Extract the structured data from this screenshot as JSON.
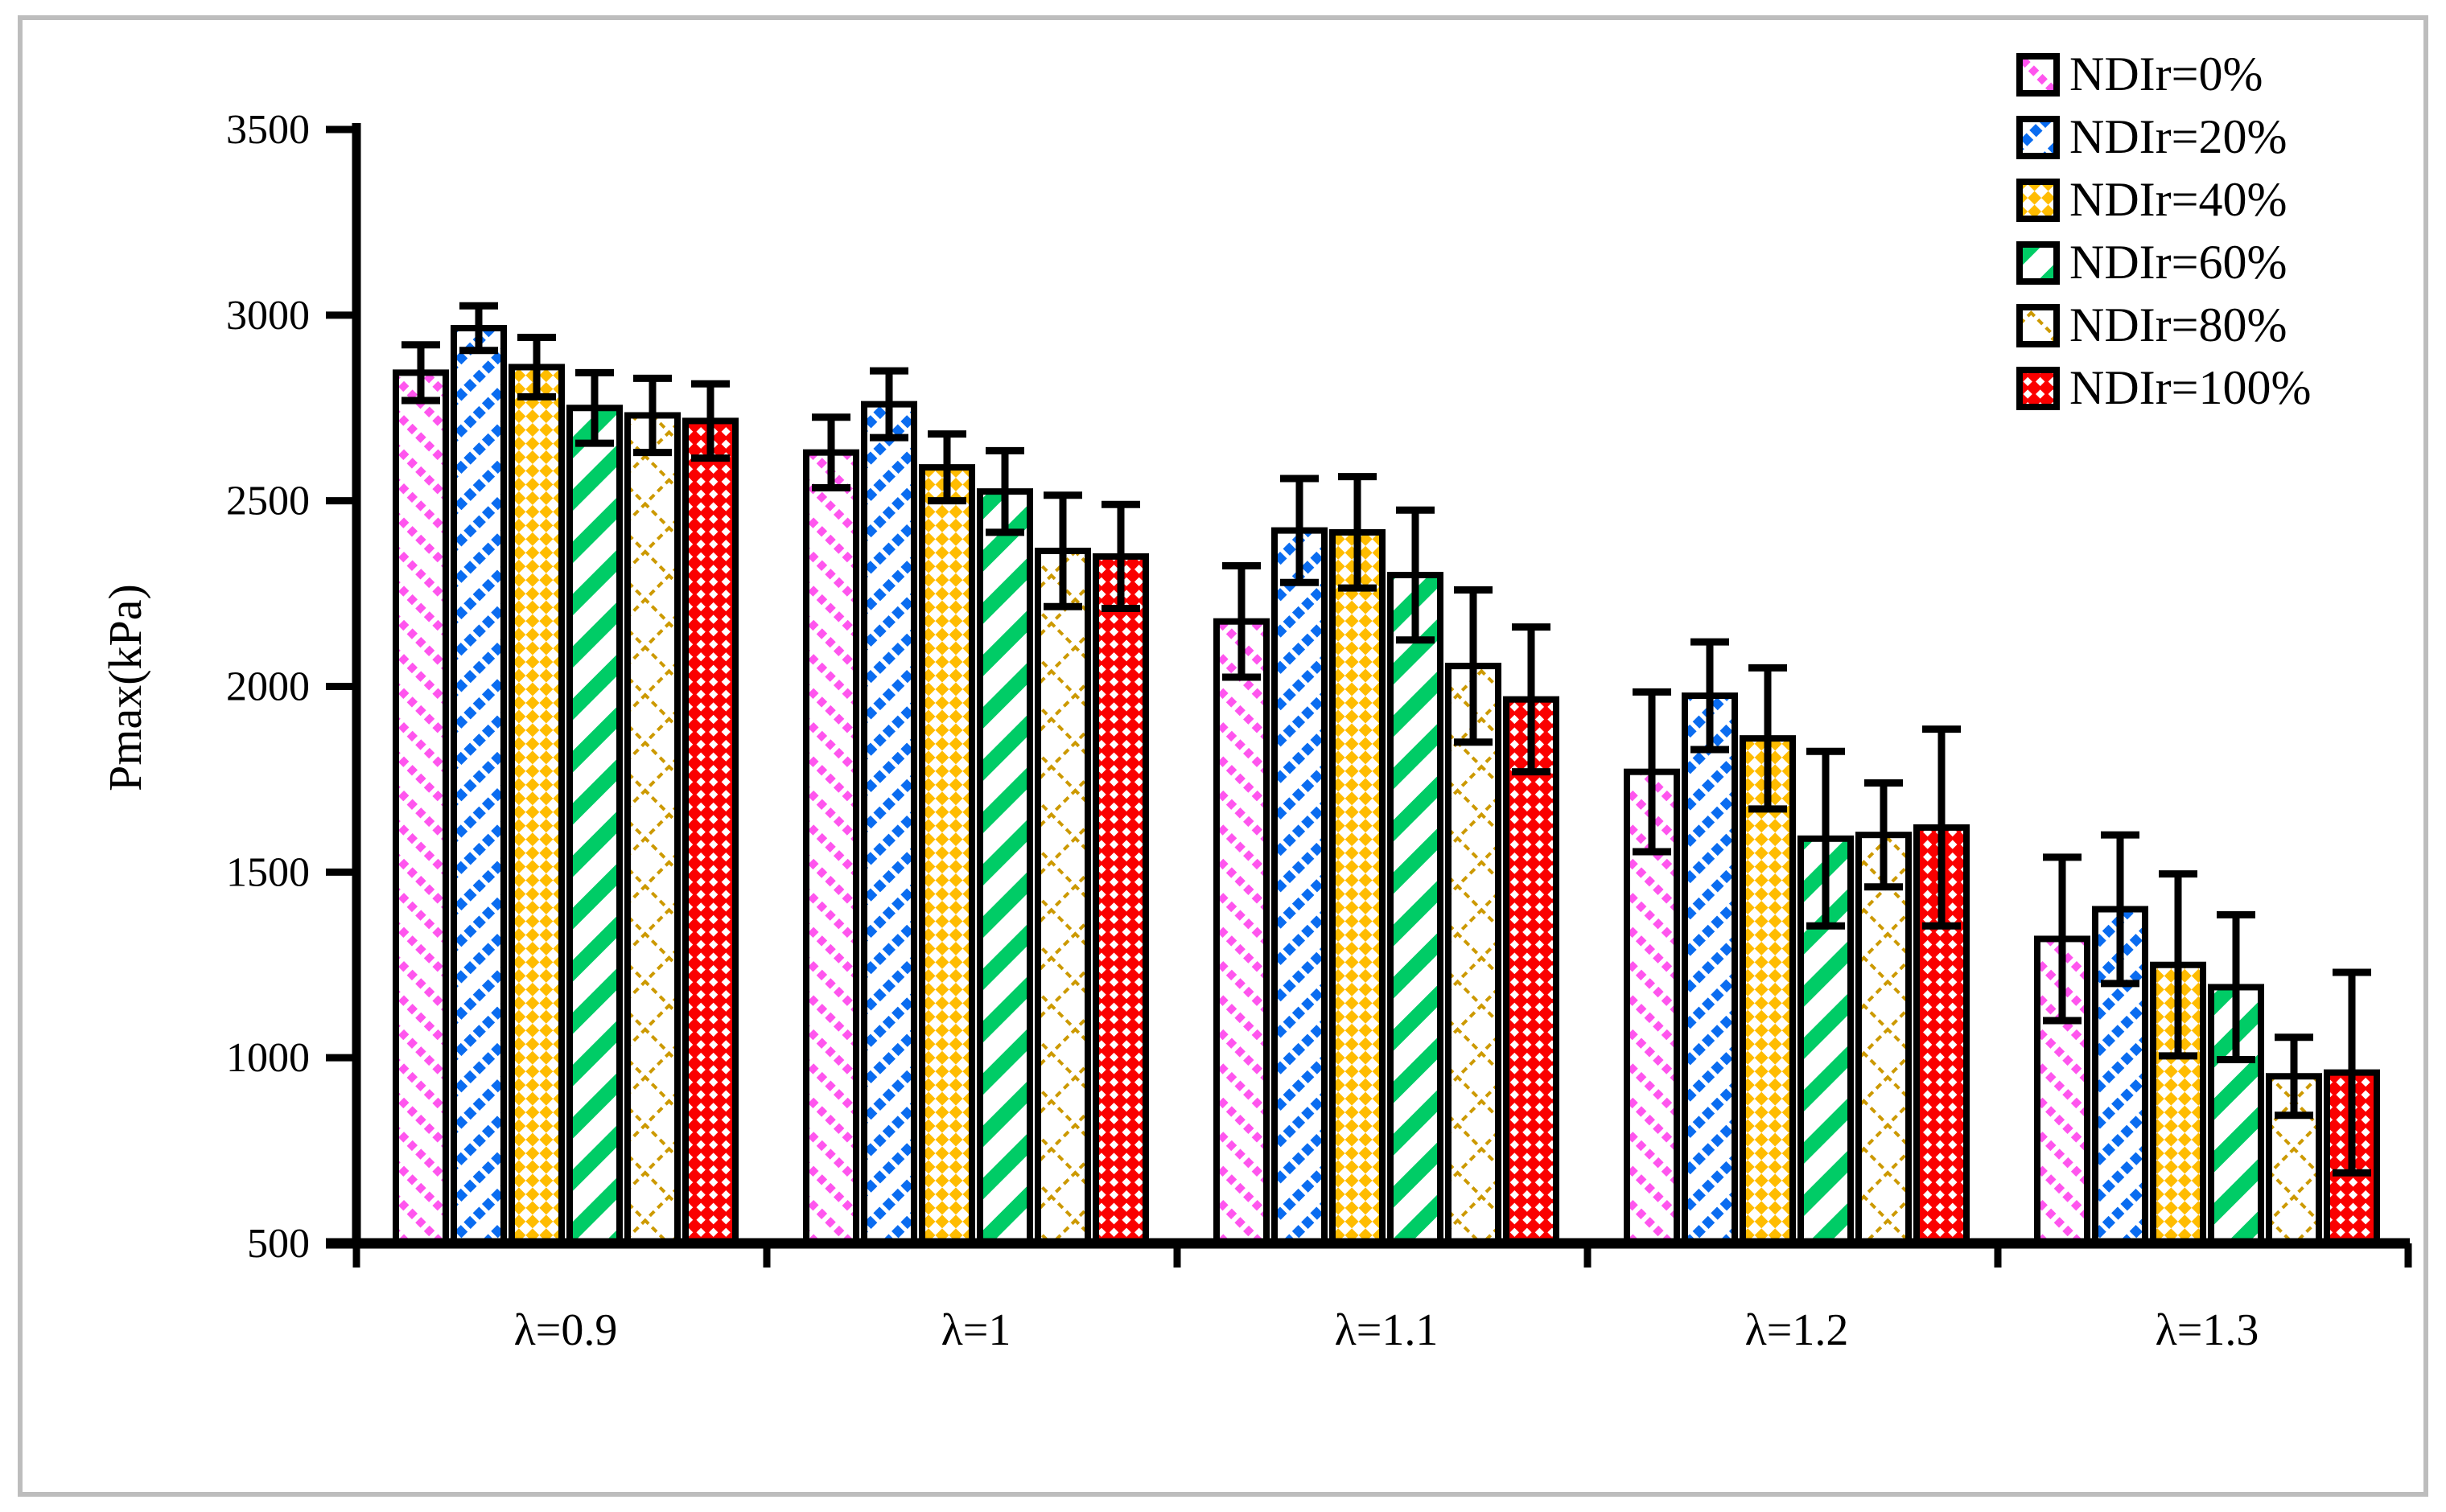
{
  "frame": {
    "border_color": "#bdbdbd",
    "background": "#ffffff"
  },
  "chart_data": {
    "type": "bar",
    "title": "",
    "xlabel": "",
    "ylabel": "Pmax(kPa)",
    "ylim": [
      500,
      3500
    ],
    "ytick_step": 500,
    "ytick_labels": [
      "500",
      "1000",
      "1500",
      "2000",
      "2500",
      "3000",
      "3500"
    ],
    "grid": false,
    "error_bars": true,
    "legend_position": "top-right",
    "categories": [
      "λ=0.9",
      "λ=1",
      "λ=1.1",
      "λ=1.2",
      "λ=1.3"
    ],
    "series": [
      {
        "name": "NDIr=0%",
        "color": "#ff55ee",
        "pattern": "diagonal-backslash-dashed",
        "values": [
          2845,
          2630,
          2175,
          1770,
          1320
        ],
        "errors": [
          75,
          95,
          150,
          215,
          220
        ]
      },
      {
        "name": "NDIr=20%",
        "color": "#0a6cf0",
        "pattern": "diagonal-slash-dashed",
        "values": [
          2965,
          2760,
          2420,
          1975,
          1400
        ],
        "errors": [
          60,
          90,
          140,
          145,
          200
        ]
      },
      {
        "name": "NDIr=40%",
        "color": "#ffbc00",
        "pattern": "diamond-checker",
        "values": [
          2860,
          2590,
          2415,
          1860,
          1250
        ],
        "errors": [
          80,
          90,
          150,
          190,
          245
        ]
      },
      {
        "name": "NDIr=60%",
        "color": "#00cc66",
        "pattern": "diagonal-slash-thick",
        "values": [
          2750,
          2525,
          2300,
          1590,
          1190
        ],
        "errors": [
          95,
          110,
          175,
          235,
          195
        ]
      },
      {
        "name": "NDIr=80%",
        "color": "#cc9900",
        "pattern": "diamond-lattice",
        "values": [
          2730,
          2365,
          2055,
          1600,
          950
        ],
        "errors": [
          100,
          150,
          205,
          140,
          105
        ]
      },
      {
        "name": "NDIr=100%",
        "color": "#fa0000",
        "pattern": "checker-divot",
        "values": [
          2715,
          2350,
          1965,
          1620,
          960
        ],
        "errors": [
          100,
          140,
          195,
          265,
          270
        ]
      }
    ]
  }
}
